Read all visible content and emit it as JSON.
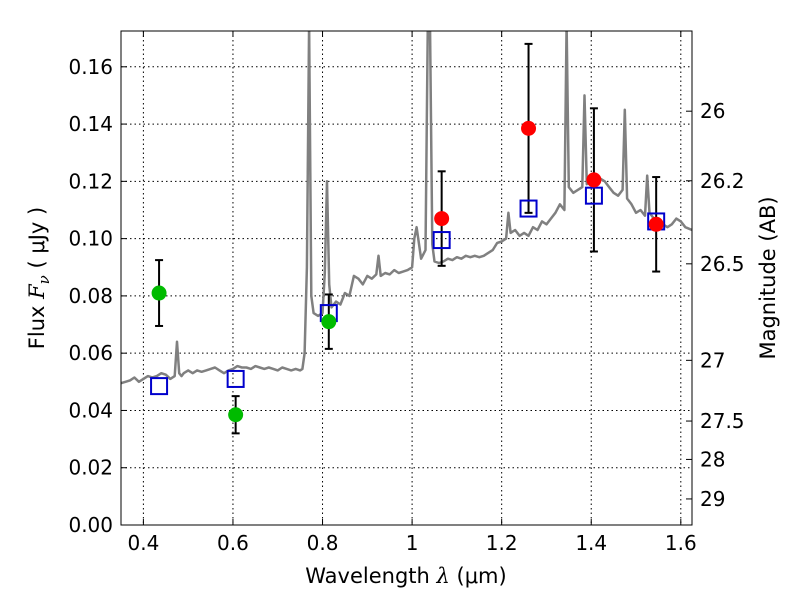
{
  "chart_data": {
    "type": "scatter",
    "title": "",
    "xlabel": {
      "prefix": "Wavelength  ",
      "symbol": "λ",
      "units": " (μm)"
    },
    "ylabel": {
      "prefix": "Flux  ",
      "symbol": "F",
      "subscript": "ν",
      "units": "  ( μJy )"
    },
    "y2label": "Magnitude (AB)",
    "xlim": [
      0.35,
      1.625
    ],
    "ylim": [
      0.0,
      0.1725
    ],
    "xticks": [
      0.4,
      0.6,
      0.8,
      1.0,
      1.2,
      1.4,
      1.6
    ],
    "xtick_labels": [
      "0.4",
      "0.6",
      "0.8",
      "1",
      "1.2",
      "1.4",
      "1.6"
    ],
    "yticks": [
      0.0,
      0.02,
      0.04,
      0.06,
      0.08,
      0.1,
      0.12,
      0.14,
      0.16
    ],
    "ytick_labels": [
      "0.00",
      "0.02",
      "0.04",
      "0.06",
      "0.08",
      "0.10",
      "0.12",
      "0.14",
      "0.16"
    ],
    "y2ticks": [
      {
        "label": "26",
        "flux": 0.1445
      },
      {
        "label": "26.2",
        "flux": 0.1202
      },
      {
        "label": "26.5",
        "flux": 0.0912
      },
      {
        "label": "27",
        "flux": 0.0575
      },
      {
        "label": "27.5",
        "flux": 0.0363
      },
      {
        "label": "28",
        "flux": 0.0229
      },
      {
        "label": "29",
        "flux": 0.0091
      }
    ],
    "grid": true,
    "series": [
      {
        "type": "line",
        "color": "#808080",
        "x": [
          0.35,
          0.36,
          0.37,
          0.38,
          0.39,
          0.4,
          0.41,
          0.42,
          0.43,
          0.44,
          0.45,
          0.46,
          0.47,
          0.475,
          0.48,
          0.485,
          0.49,
          0.5,
          0.51,
          0.52,
          0.53,
          0.54,
          0.55,
          0.56,
          0.57,
          0.58,
          0.59,
          0.6,
          0.61,
          0.62,
          0.63,
          0.64,
          0.65,
          0.66,
          0.67,
          0.68,
          0.69,
          0.7,
          0.71,
          0.72,
          0.73,
          0.74,
          0.75,
          0.755,
          0.76,
          0.765,
          0.77,
          0.775,
          0.78,
          0.79,
          0.8,
          0.805,
          0.81,
          0.815,
          0.82,
          0.83,
          0.84,
          0.85,
          0.86,
          0.87,
          0.88,
          0.89,
          0.9,
          0.91,
          0.92,
          0.925,
          0.93,
          0.94,
          0.95,
          0.96,
          0.97,
          0.98,
          0.99,
          1.0,
          1.005,
          1.01,
          1.02,
          1.03,
          1.035,
          1.04,
          1.045,
          1.05,
          1.06,
          1.07,
          1.08,
          1.09,
          1.1,
          1.11,
          1.12,
          1.13,
          1.14,
          1.15,
          1.16,
          1.17,
          1.18,
          1.19,
          1.2,
          1.21,
          1.215,
          1.22,
          1.23,
          1.24,
          1.25,
          1.26,
          1.27,
          1.28,
          1.29,
          1.3,
          1.31,
          1.32,
          1.33,
          1.34,
          1.345,
          1.35,
          1.36,
          1.37,
          1.38,
          1.385,
          1.39,
          1.4,
          1.41,
          1.42,
          1.43,
          1.44,
          1.45,
          1.46,
          1.47,
          1.475,
          1.48,
          1.49,
          1.5,
          1.51,
          1.52,
          1.525,
          1.53,
          1.54,
          1.55,
          1.56,
          1.57,
          1.58,
          1.59,
          1.6,
          1.61,
          1.625
        ],
        "y": [
          0.0495,
          0.05,
          0.0505,
          0.0515,
          0.05,
          0.051,
          0.052,
          0.0515,
          0.052,
          0.053,
          0.0525,
          0.051,
          0.052,
          0.064,
          0.053,
          0.052,
          0.053,
          0.054,
          0.053,
          0.054,
          0.0535,
          0.054,
          0.0545,
          0.055,
          0.054,
          0.053,
          0.054,
          0.0545,
          0.0555,
          0.055,
          0.055,
          0.0545,
          0.0555,
          0.055,
          0.0545,
          0.055,
          0.0545,
          0.054,
          0.055,
          0.0545,
          0.054,
          0.0545,
          0.054,
          0.0545,
          0.06,
          0.09,
          0.175,
          0.08,
          0.074,
          0.073,
          0.074,
          0.088,
          0.12,
          0.084,
          0.076,
          0.078,
          0.077,
          0.081,
          0.08,
          0.087,
          0.086,
          0.084,
          0.087,
          0.086,
          0.0875,
          0.094,
          0.087,
          0.088,
          0.0875,
          0.089,
          0.088,
          0.0885,
          0.089,
          0.09,
          0.1,
          0.104,
          0.093,
          0.096,
          0.175,
          0.175,
          0.098,
          0.092,
          0.0915,
          0.092,
          0.093,
          0.0925,
          0.0935,
          0.093,
          0.094,
          0.0935,
          0.094,
          0.0935,
          0.094,
          0.095,
          0.096,
          0.0985,
          0.099,
          0.1,
          0.109,
          0.102,
          0.103,
          0.101,
          0.102,
          0.101,
          0.104,
          0.103,
          0.106,
          0.105,
          0.107,
          0.109,
          0.112,
          0.11,
          0.175,
          0.118,
          0.116,
          0.117,
          0.118,
          0.15,
          0.119,
          0.12,
          0.119,
          0.121,
          0.12,
          0.118,
          0.116,
          0.115,
          0.117,
          0.145,
          0.114,
          0.112,
          0.109,
          0.11,
          0.108,
          0.122,
          0.109,
          0.107,
          0.106,
          0.105,
          0.104,
          0.105,
          0.107,
          0.106,
          0.104,
          0.103
        ]
      },
      {
        "type": "errorbar",
        "marker": "circle",
        "color": "#00bb00",
        "points": [
          {
            "x": 0.435,
            "y": 0.081,
            "yerr": [
              0.0115,
              0.0115
            ]
          },
          {
            "x": 0.606,
            "y": 0.0385,
            "yerr": [
              0.0065,
              0.0065
            ]
          },
          {
            "x": 0.814,
            "y": 0.071,
            "yerr": [
              0.0095,
              0.0095
            ]
          }
        ]
      },
      {
        "type": "errorbar",
        "marker": "circle",
        "color": "#ff0000",
        "points": [
          {
            "x": 1.066,
            "y": 0.107,
            "yerr": [
              0.0165,
              0.0165
            ]
          },
          {
            "x": 1.26,
            "y": 0.1385,
            "yerr": [
              0.0295,
              0.0295
            ]
          },
          {
            "x": 1.406,
            "y": 0.1205,
            "yerr": [
              0.025,
              0.025
            ]
          },
          {
            "x": 1.545,
            "y": 0.105,
            "yerr": [
              0.0165,
              0.0165
            ]
          }
        ]
      },
      {
        "type": "scatter",
        "marker": "square-open",
        "color": "#0000cc",
        "points": [
          {
            "x": 0.435,
            "y": 0.0485
          },
          {
            "x": 0.606,
            "y": 0.051
          },
          {
            "x": 0.814,
            "y": 0.074
          },
          {
            "x": 1.066,
            "y": 0.0995
          },
          {
            "x": 1.26,
            "y": 0.1105
          },
          {
            "x": 1.406,
            "y": 0.115
          },
          {
            "x": 1.545,
            "y": 0.106
          }
        ]
      }
    ]
  }
}
